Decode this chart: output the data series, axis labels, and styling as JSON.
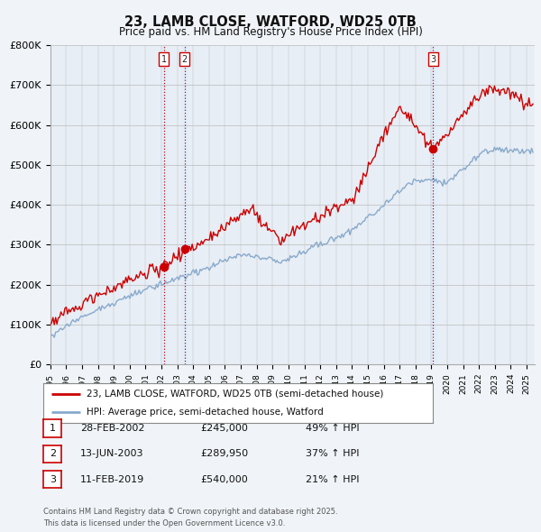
{
  "title": "23, LAMB CLOSE, WATFORD, WD25 0TB",
  "subtitle": "Price paid vs. HM Land Registry's House Price Index (HPI)",
  "legend_line1": "23, LAMB CLOSE, WATFORD, WD25 0TB (semi-detached house)",
  "legend_line2": "HPI: Average price, semi-detached house, Watford",
  "footer1": "Contains HM Land Registry data © Crown copyright and database right 2025.",
  "footer2": "This data is licensed under the Open Government Licence v3.0.",
  "sales": [
    {
      "label": "1",
      "date": "28-FEB-2002",
      "price": 245000,
      "pct": "49%",
      "dir": "↑",
      "x_year": 2002.16
    },
    {
      "label": "2",
      "date": "13-JUN-2003",
      "price": 289950,
      "pct": "37%",
      "dir": "↑",
      "x_year": 2003.45
    },
    {
      "label": "3",
      "date": "11-FEB-2019",
      "price": 540000,
      "pct": "21%",
      "dir": "↑",
      "x_year": 2019.12
    }
  ],
  "vline_color": "#cc0000",
  "vline_style": ":",
  "vline_bg_color": "#ddeeff",
  "red_line_color": "#cc0000",
  "blue_line_color": "#88aacc",
  "xlim": [
    1995.0,
    2025.5
  ],
  "ylim": [
    0,
    800000
  ],
  "yticks": [
    0,
    100000,
    200000,
    300000,
    400000,
    500000,
    600000,
    700000,
    800000
  ],
  "ytick_labels": [
    "£0",
    "£100K",
    "£200K",
    "£300K",
    "£400K",
    "£500K",
    "£600K",
    "£700K",
    "£800K"
  ],
  "background_color": "#f0f4f8",
  "plot_background": "#e8eef5"
}
